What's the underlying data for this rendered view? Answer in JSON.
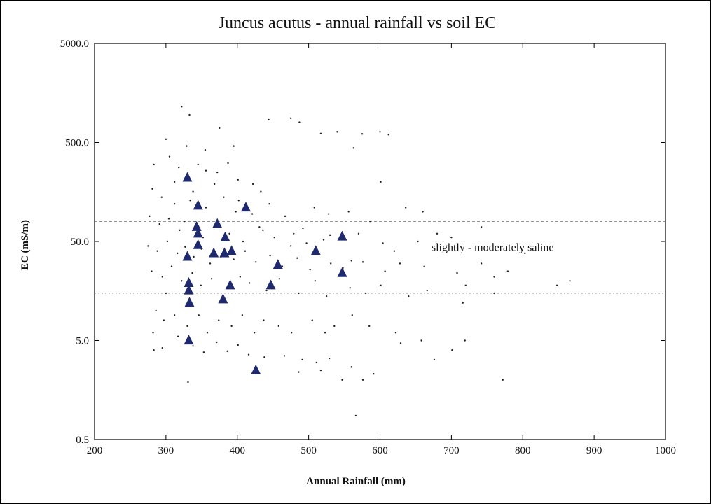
{
  "chart_data": {
    "type": "scatter",
    "title": "Juncus acutus - annual rainfall vs soil EC",
    "xlabel": "Annual Rainfall (mm)",
    "ylabel": "EC (mS/m)",
    "xlim": [
      200,
      1000
    ],
    "ylim": [
      0.5,
      5000
    ],
    "yscale": "log",
    "x_ticks": [
      {
        "value": 200,
        "label": "200"
      },
      {
        "value": 300,
        "label": "300"
      },
      {
        "value": 400,
        "label": "400"
      },
      {
        "value": 500,
        "label": "500"
      },
      {
        "value": 600,
        "label": "600"
      },
      {
        "value": 700,
        "label": "700"
      },
      {
        "value": 800,
        "label": "800"
      },
      {
        "value": 900,
        "label": "900"
      },
      {
        "value": 1000,
        "label": "1000"
      }
    ],
    "y_ticks": [
      {
        "value": 0.5,
        "label": "0.5"
      },
      {
        "value": 5,
        "label": "5.0"
      },
      {
        "value": 50,
        "label": "50.0"
      },
      {
        "value": 500,
        "label": "500.0"
      },
      {
        "value": 5000,
        "label": "5000.0"
      }
    ],
    "grid": false,
    "reference_lines": [
      {
        "y": 80,
        "style": "dashed"
      },
      {
        "y": 15,
        "style": "dotted"
      }
    ],
    "annotations": [
      {
        "text": "slightly - moderately saline",
        "x": 672,
        "y": 40
      }
    ],
    "series": [
      {
        "marker": "triangle",
        "color": "#1f2a6e",
        "points": [
          [
            330,
            220
          ],
          [
            345,
            115
          ],
          [
            412,
            110
          ],
          [
            343,
            70
          ],
          [
            372,
            75
          ],
          [
            345,
            60
          ],
          [
            383,
            55
          ],
          [
            547,
            56
          ],
          [
            345,
            46
          ],
          [
            330,
            35
          ],
          [
            367,
            38
          ],
          [
            382,
            38
          ],
          [
            392,
            40
          ],
          [
            510,
            40
          ],
          [
            457,
            29
          ],
          [
            547,
            24
          ],
          [
            332,
            19
          ],
          [
            332,
            16
          ],
          [
            390,
            18
          ],
          [
            447,
            18
          ],
          [
            333,
            12
          ],
          [
            380,
            13
          ],
          [
            332,
            5
          ],
          [
            426,
            2.5
          ]
        ]
      },
      {
        "marker": "dot",
        "color": "#222222",
        "points": [
          [
            322,
            1150
          ],
          [
            333,
            950
          ],
          [
            375,
            700
          ],
          [
            444,
            850
          ],
          [
            475,
            880
          ],
          [
            487,
            800
          ],
          [
            540,
            640
          ],
          [
            517,
            615
          ],
          [
            575,
            610
          ],
          [
            600,
            640
          ],
          [
            612,
            600
          ],
          [
            300,
            540
          ],
          [
            329,
            460
          ],
          [
            355,
            420
          ],
          [
            395,
            460
          ],
          [
            563,
            440
          ],
          [
            601,
            200
          ],
          [
            283,
            300
          ],
          [
            305,
            360
          ],
          [
            318,
            280
          ],
          [
            345,
            300
          ],
          [
            372,
            250
          ],
          [
            401,
            210
          ],
          [
            422,
            190
          ],
          [
            433,
            160
          ],
          [
            281,
            170
          ],
          [
            294,
            140
          ],
          [
            312,
            120
          ],
          [
            334,
            130
          ],
          [
            356,
            110
          ],
          [
            381,
            140
          ],
          [
            398,
            100
          ],
          [
            421,
            95
          ],
          [
            445,
            120
          ],
          [
            467,
            90
          ],
          [
            508,
            110
          ],
          [
            528,
            95
          ],
          [
            556,
            100
          ],
          [
            586,
            80
          ],
          [
            636,
            110
          ],
          [
            660,
            100
          ],
          [
            277,
            90
          ],
          [
            291,
            75
          ],
          [
            304,
            85
          ],
          [
            319,
            65
          ],
          [
            341,
            80
          ],
          [
            352,
            55
          ],
          [
            367,
            70
          ],
          [
            389,
            60
          ],
          [
            408,
            50
          ],
          [
            436,
            65
          ],
          [
            452,
            55
          ],
          [
            479,
            60
          ],
          [
            497,
            48
          ],
          [
            521,
            52
          ],
          [
            570,
            60
          ],
          [
            604,
            48
          ],
          [
            653,
            50
          ],
          [
            680,
            60
          ],
          [
            742,
            70
          ],
          [
            275,
            45
          ],
          [
            288,
            40
          ],
          [
            302,
            50
          ],
          [
            316,
            38
          ],
          [
            327,
            44
          ],
          [
            339,
            35
          ],
          [
            350,
            42
          ],
          [
            362,
            30
          ],
          [
            377,
            35
          ],
          [
            395,
            33
          ],
          [
            411,
            40
          ],
          [
            426,
            31
          ],
          [
            446,
            36
          ],
          [
            463,
            28
          ],
          [
            484,
            34
          ],
          [
            502,
            26
          ],
          [
            531,
            30
          ],
          [
            548,
            27
          ],
          [
            576,
            31
          ],
          [
            607,
            25
          ],
          [
            628,
            30
          ],
          [
            662,
            28
          ],
          [
            708,
            24
          ],
          [
            760,
            22
          ],
          [
            779,
            25
          ],
          [
            280,
            25
          ],
          [
            295,
            22
          ],
          [
            308,
            28
          ],
          [
            322,
            20
          ],
          [
            337,
            24
          ],
          [
            349,
            18
          ],
          [
            364,
            21
          ],
          [
            385,
            17
          ],
          [
            404,
            22
          ],
          [
            417,
            19
          ],
          [
            441,
            16
          ],
          [
            459,
            21
          ],
          [
            486,
            15
          ],
          [
            509,
            20
          ],
          [
            525,
            14
          ],
          [
            558,
            17
          ],
          [
            580,
            15
          ],
          [
            601,
            18
          ],
          [
            640,
            14
          ],
          [
            666,
            16
          ],
          [
            716,
            12
          ],
          [
            760,
            15
          ],
          [
            848,
            18
          ],
          [
            286,
            10
          ],
          [
            297,
            8
          ],
          [
            312,
            9
          ],
          [
            330,
            7
          ],
          [
            346,
            9
          ],
          [
            358,
            6
          ],
          [
            374,
            8
          ],
          [
            392,
            7
          ],
          [
            407,
            9
          ],
          [
            424,
            6
          ],
          [
            437,
            8
          ],
          [
            458,
            7
          ],
          [
            476,
            6
          ],
          [
            505,
            8
          ],
          [
            523,
            6
          ],
          [
            536,
            7
          ],
          [
            561,
            9
          ],
          [
            585,
            7
          ],
          [
            622,
            6
          ],
          [
            658,
            5
          ],
          [
            701,
            4
          ],
          [
            719,
            5
          ],
          [
            282,
            6
          ],
          [
            295,
            4.2
          ],
          [
            317,
            5.5
          ],
          [
            338,
            4.4
          ],
          [
            353,
            3.8
          ],
          [
            371,
            4.8
          ],
          [
            386,
            3.9
          ],
          [
            401,
            4.5
          ],
          [
            416,
            3.6
          ],
          [
            438,
            3.4
          ],
          [
            466,
            3.5
          ],
          [
            491,
            3.2
          ],
          [
            511,
            3.0
          ],
          [
            529,
            3.3
          ],
          [
            560,
            2.7
          ],
          [
            576,
            2.0
          ],
          [
            591,
            2.3
          ],
          [
            547,
            2.0
          ],
          [
            517,
            2.5
          ],
          [
            486,
            2.4
          ],
          [
            331,
            1.9
          ],
          [
            566,
            0.87
          ],
          [
            676,
            3.2
          ],
          [
            772,
            2.0
          ],
          [
            629,
            4.7
          ],
          [
            283,
            4.0
          ],
          [
            300,
            15
          ],
          [
            312,
            200
          ],
          [
            326,
            80
          ],
          [
            338,
            160
          ],
          [
            356,
            260
          ],
          [
            368,
            190
          ],
          [
            387,
            310
          ],
          [
            402,
            130
          ],
          [
            431,
            70
          ],
          [
            475,
            45
          ],
          [
            492,
            68
          ],
          [
            530,
            58
          ],
          [
            560,
            32
          ],
          [
            620,
            40
          ],
          [
            700,
            55
          ],
          [
            720,
            18
          ],
          [
            742,
            30
          ],
          [
            803,
            38
          ],
          [
            866,
            20
          ]
        ]
      }
    ]
  }
}
